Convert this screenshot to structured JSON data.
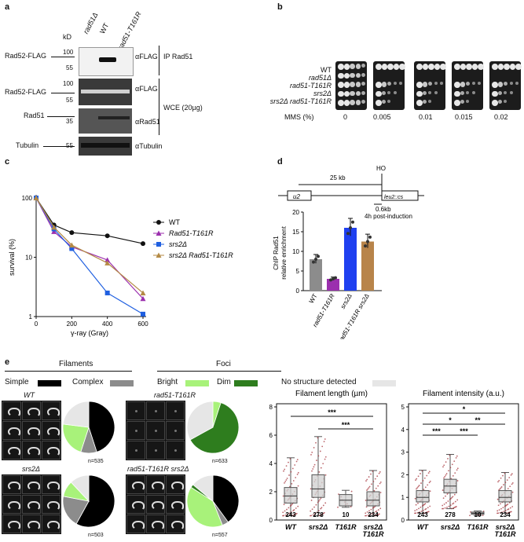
{
  "panel_a": {
    "letter": "a",
    "lanes": [
      "rad51Δ",
      "WT",
      "rad51-T161R"
    ],
    "kd_label": "kD",
    "markers": {
      "top": [
        "100",
        "55"
      ],
      "mid": [
        "100",
        "55",
        "35"
      ],
      "bottom": [
        "55"
      ]
    },
    "bands": [
      "Rad52-FLAG",
      "Rad52-FLAG",
      "Rad51",
      "Tubulin"
    ],
    "antibodies": [
      "αFLAG",
      "αFLAG",
      "αRad51",
      "αTubulin"
    ],
    "groups": [
      "IP Rad51",
      "WCE (20µg)"
    ]
  },
  "panel_b": {
    "letter": "b",
    "strains": [
      "WT",
      "rad51Δ",
      "rad51-T161R",
      "srs2Δ",
      "srs2Δ rad51-T161R"
    ],
    "mms_label": "MMS (%)",
    "mms_values": [
      "0",
      "0.005",
      "0.01",
      "0.015",
      "0.02"
    ]
  },
  "panel_c": {
    "letter": "c",
    "chart_data": {
      "type": "line",
      "xlabel": "γ-ray (Gray)",
      "ylabel": "survival (%)",
      "x_ticks": [
        "0",
        "200",
        "400",
        "600"
      ],
      "y_ticks": [
        "1",
        "10",
        "100"
      ],
      "yscale": "log",
      "series": [
        {
          "name": "WT",
          "color": "#111111",
          "marker": "circle",
          "x": [
            0,
            100,
            200,
            400,
            600
          ],
          "y": [
            100,
            35,
            26,
            23,
            17
          ]
        },
        {
          "name": "Rad51-T161R",
          "color": "#9b2fae",
          "marker": "triangle",
          "x": [
            0,
            100,
            200,
            400,
            600
          ],
          "y": [
            100,
            27,
            15,
            9,
            2
          ]
        },
        {
          "name": "srs2Δ",
          "color": "#1f5fe0",
          "marker": "square",
          "x": [
            0,
            100,
            200,
            400,
            600
          ],
          "y": [
            100,
            30,
            14,
            2.5,
            1.1
          ]
        },
        {
          "name": "srs2Δ Rad51-T161R",
          "color": "#b48a45",
          "marker": "triangle",
          "x": [
            0,
            100,
            200,
            400,
            600
          ],
          "y": [
            100,
            32,
            16,
            8,
            2.5
          ]
        }
      ]
    }
  },
  "panel_d": {
    "letter": "d",
    "schematic": {
      "left_box": "u2",
      "right_box": "leu2::cs",
      "distance": "25 kb",
      "site": "HO",
      "offset": "0.6kb",
      "time": "4h post-induction"
    },
    "chart_data": {
      "type": "bar",
      "ylabel": "ChIP Rad51 relative enrichment",
      "ylim": [
        0,
        20
      ],
      "y_ticks": [
        "0",
        "5",
        "10",
        "15",
        "20"
      ],
      "categories": [
        "WT",
        "rad51-T161R",
        "srs2Δ",
        "rad51-T161R srs2Δ"
      ],
      "values": [
        8,
        3,
        16,
        12.5
      ],
      "colors": [
        "#8c8c8c",
        "#9b2fae",
        "#1f40f0",
        "#b8844a"
      ]
    }
  },
  "panel_e": {
    "letter": "e",
    "filaments_title": "Filaments",
    "foci_title": "Foci",
    "legend": [
      {
        "label": "Simple",
        "color": "#000000"
      },
      {
        "label": "Complex",
        "color": "#8c8c8c"
      },
      {
        "label": "Bright",
        "color": "#a8f27a"
      },
      {
        "label": "Dim",
        "color": "#2e7d1e"
      },
      {
        "label": "No structure detected",
        "color": "#e6e6e6"
      }
    ],
    "strains": [
      {
        "name": "WT",
        "n": "n=535",
        "pie": [
          0.45,
          0.1,
          0.22,
          0.0,
          0.23
        ]
      },
      {
        "name": "rad51-T161R",
        "n": "n=633",
        "pie": [
          0.0,
          0.0,
          0.05,
          0.62,
          0.33
        ]
      },
      {
        "name": "srs2Δ",
        "n": "n=503",
        "pie": [
          0.58,
          0.2,
          0.1,
          0.0,
          0.12
        ]
      },
      {
        "name": "rad51-T161R srs2Δ",
        "n": "n=557",
        "pie": [
          0.4,
          0.04,
          0.4,
          0.02,
          0.14
        ]
      }
    ],
    "box_length": {
      "title": "Filament length (µm)",
      "ylim": [
        0,
        8
      ],
      "y_ticks": [
        "0",
        "2",
        "4",
        "6",
        "8"
      ],
      "categories": [
        "WT",
        "srs2Δ",
        "T161R",
        "srs2Δ T161R"
      ],
      "counts": [
        "243",
        "278",
        "10",
        "234"
      ],
      "median": [
        1.7,
        2.2,
        1.4,
        1.4
      ],
      "q1": [
        1.2,
        1.6,
        1.0,
        1.0
      ],
      "q3": [
        2.3,
        3.2,
        1.8,
        2.0
      ],
      "wmin": [
        0.3,
        0.3,
        0.9,
        0.3
      ],
      "wmax": [
        4.4,
        5.9,
        2.1,
        3.5
      ],
      "sig": [
        "***",
        "***"
      ]
    },
    "box_intensity": {
      "title": "Filament intensity (a.u.)",
      "ylim": [
        0,
        5
      ],
      "y_ticks": [
        "0",
        "1",
        "2",
        "3",
        "4",
        "5"
      ],
      "categories": [
        "WT",
        "srs2Δ",
        "T161R",
        "srs2Δ T161R"
      ],
      "counts": [
        "243",
        "278",
        "10",
        "234"
      ],
      "median": [
        1.0,
        1.5,
        0.3,
        1.0
      ],
      "q1": [
        0.8,
        1.2,
        0.25,
        0.8
      ],
      "q3": [
        1.3,
        1.8,
        0.35,
        1.3
      ],
      "wmin": [
        0.3,
        0.5,
        0.2,
        0.3
      ],
      "wmax": [
        2.2,
        2.9,
        0.4,
        2.1
      ],
      "sig": [
        "*",
        "*",
        "**",
        "***",
        "***"
      ]
    }
  }
}
